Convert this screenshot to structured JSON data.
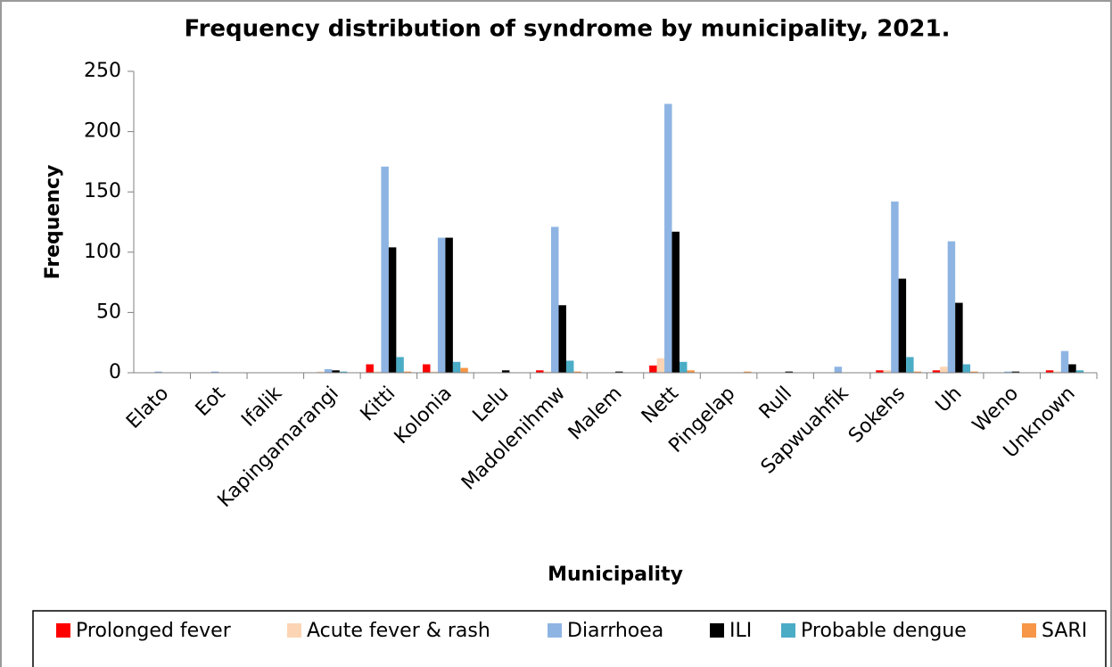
{
  "chart_data": {
    "type": "bar",
    "title": "Frequency distribution of syndrome by municipality, 2021.",
    "x_label": "Municipality",
    "y_label": "Frequency",
    "categories": [
      "Elato",
      "Eot",
      "Ifalik",
      "Kapingamarangi",
      "Kitti",
      "Kolonia",
      "Lelu",
      "Madolenihmw",
      "Malem",
      "Nett",
      "Pingelap",
      "Rull",
      "Sapwuahfik",
      "Sokehs",
      "Uh",
      "Weno",
      "Unknown"
    ],
    "series": [
      {
        "name": "Prolonged fever",
        "color": "#ff0000",
        "values": [
          0,
          0,
          0,
          0,
          7,
          7,
          0,
          2,
          0,
          6,
          0,
          0,
          0,
          2,
          2,
          0,
          2
        ]
      },
      {
        "name": "Acute fever & rash",
        "color": "#fcd5b5",
        "values": [
          0,
          0,
          0,
          1,
          1,
          1,
          0,
          1,
          0,
          12,
          0,
          0,
          0,
          2,
          5,
          0,
          1
        ]
      },
      {
        "name": "Diarrhoea",
        "color": "#8eb4e3",
        "values": [
          1,
          1,
          0,
          3,
          171,
          112,
          0,
          121,
          0,
          223,
          0,
          0,
          5,
          142,
          109,
          1,
          18
        ]
      },
      {
        "name": "ILI",
        "color": "#000000",
        "values": [
          0,
          0,
          0,
          2,
          104,
          112,
          2,
          56,
          1,
          117,
          0,
          1,
          0,
          78,
          58,
          1,
          7
        ]
      },
      {
        "name": "Probable dengue",
        "color": "#4bacc6",
        "values": [
          0,
          0,
          0,
          1,
          13,
          9,
          0,
          10,
          0,
          9,
          0,
          0,
          0,
          13,
          7,
          0,
          2
        ]
      },
      {
        "name": "SARI",
        "color": "#f79646",
        "values": [
          0,
          0,
          0,
          0,
          1,
          4,
          0,
          1,
          0,
          2,
          1,
          0,
          0,
          1,
          1,
          0,
          0
        ]
      }
    ],
    "ylim": [
      0,
      250
    ],
    "yticks": [
      0,
      50,
      100,
      150,
      200,
      250
    ],
    "grid": false,
    "legend": "bottom"
  }
}
